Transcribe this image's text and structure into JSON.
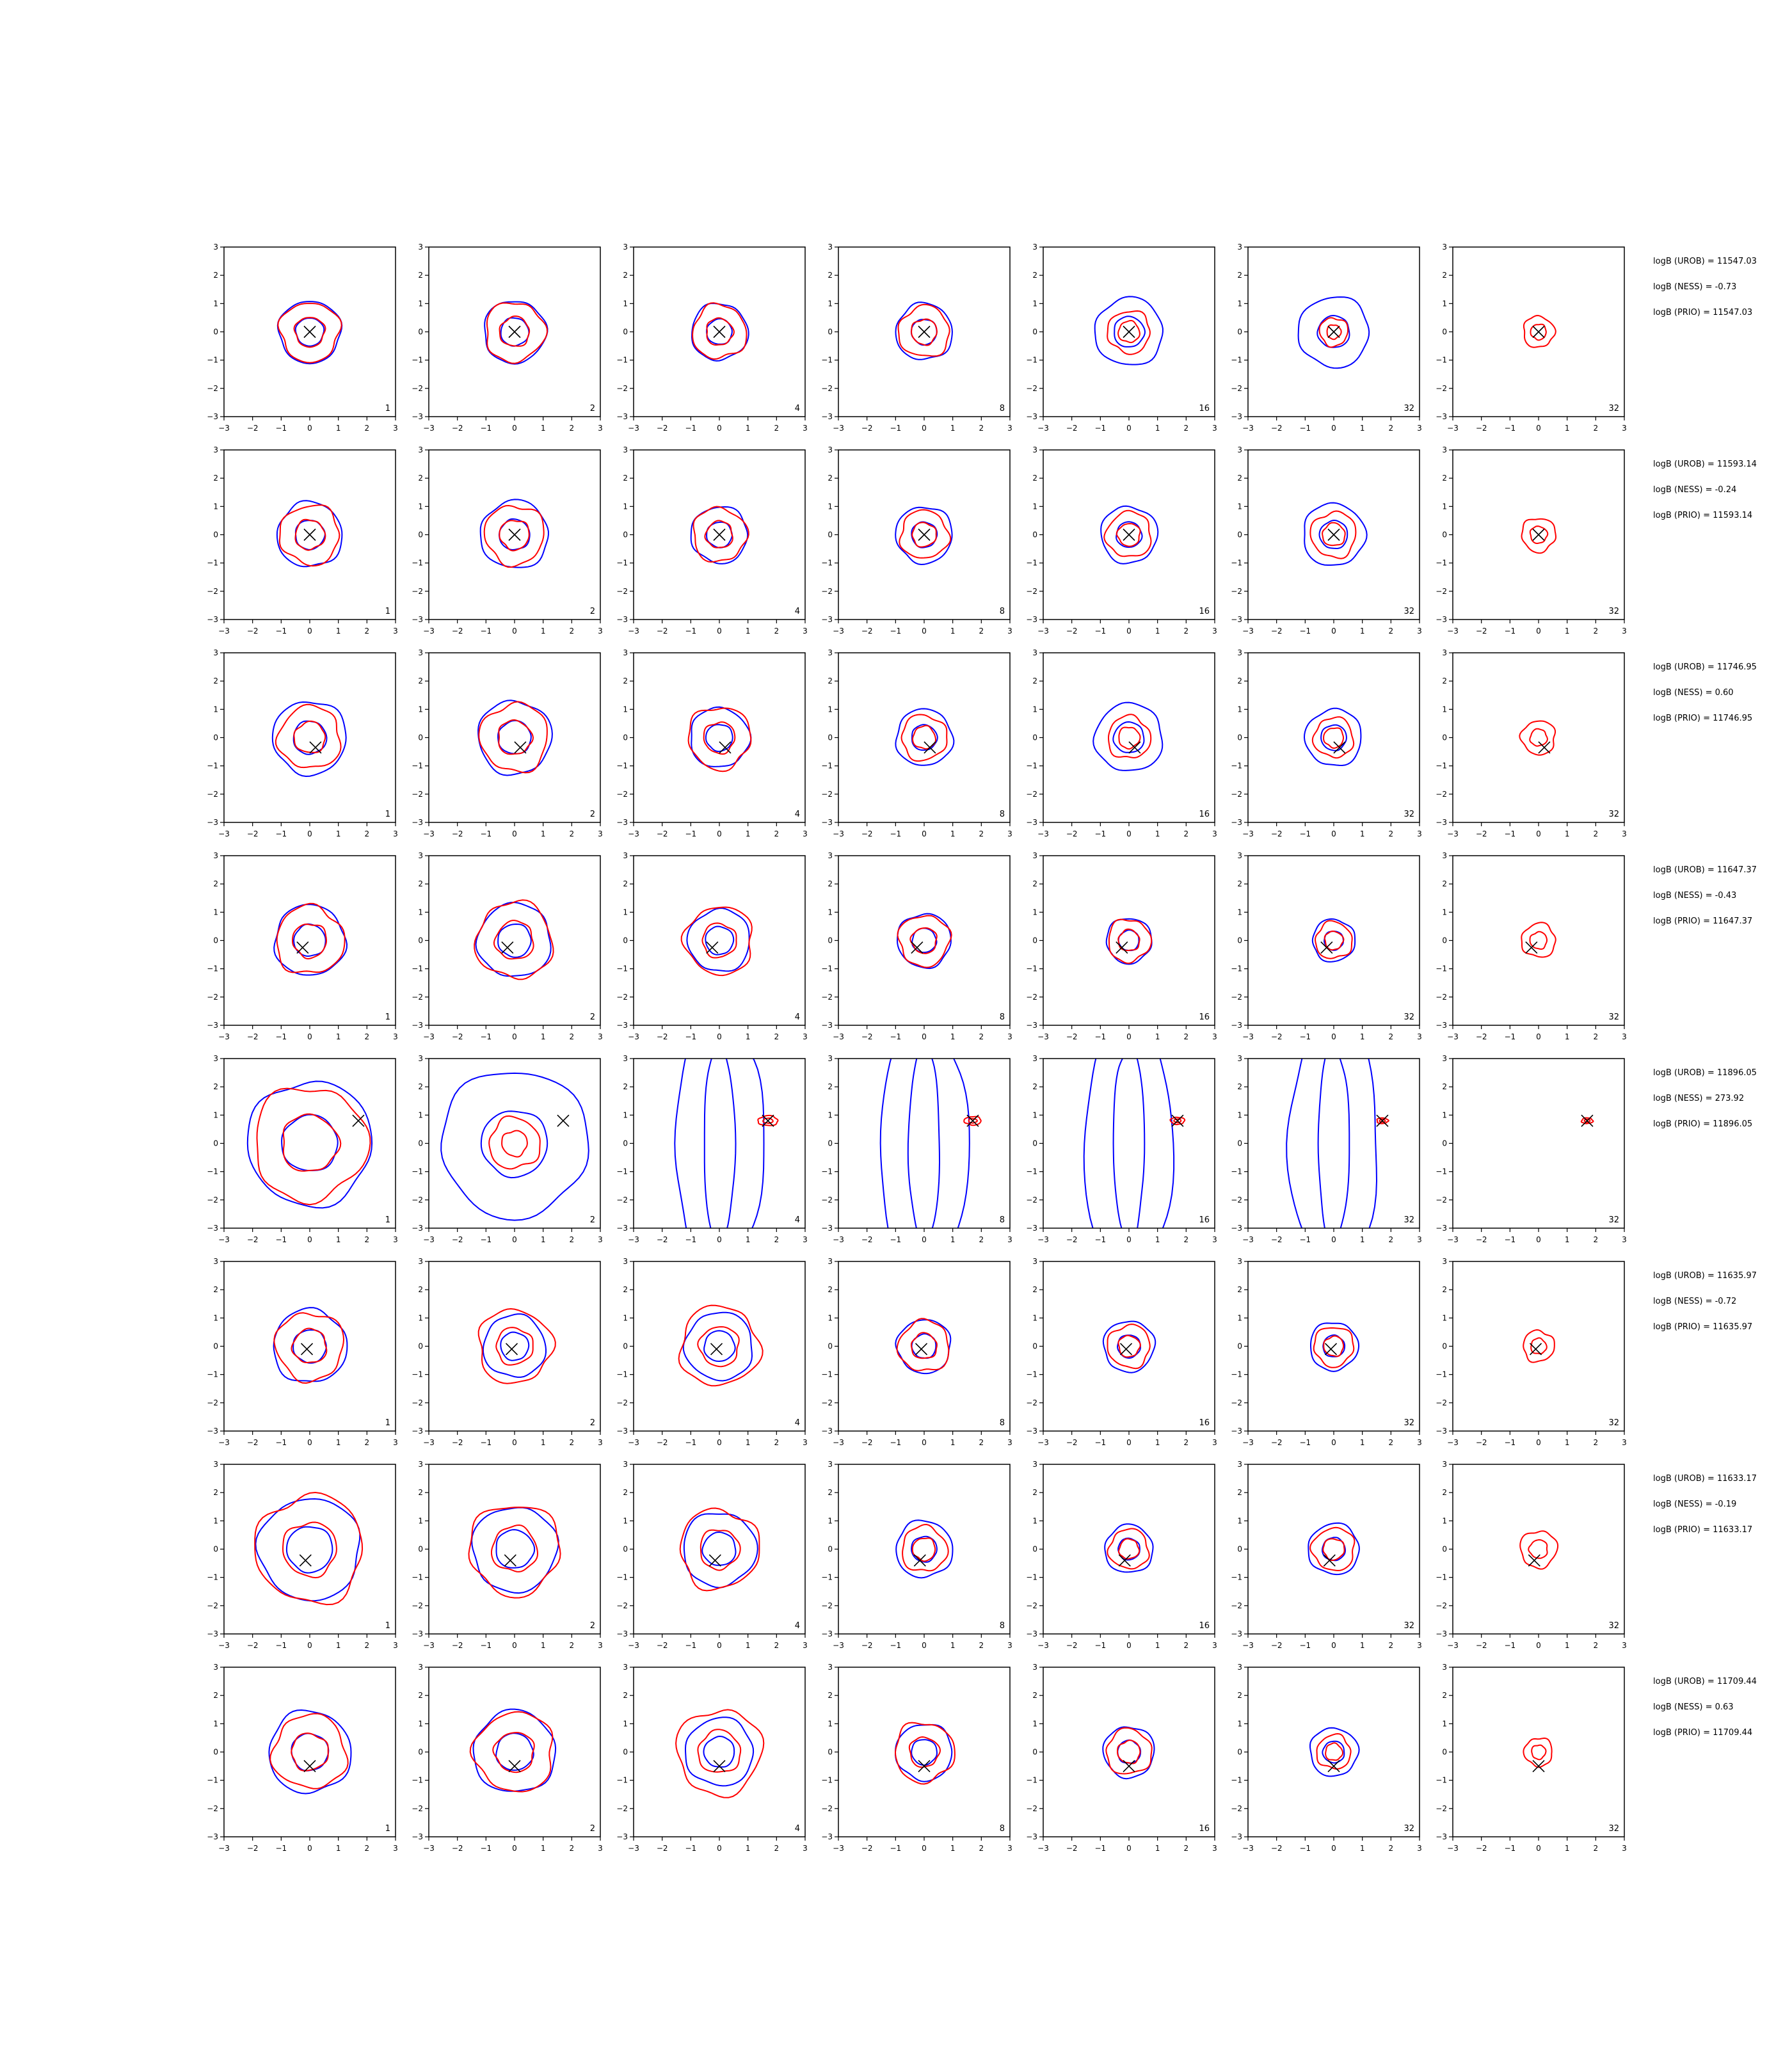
{
  "colors": {
    "contour_a": "#0000ff",
    "contour_b": "#ff0000",
    "marker": "#000000",
    "axes": "#000000"
  },
  "axis": {
    "xlim": [
      -3,
      3
    ],
    "ylim": [
      -3,
      3
    ],
    "xticks": [
      "−3",
      "−2",
      "−1",
      "0",
      "1",
      "2",
      "3"
    ],
    "yticks": [
      "3",
      "2",
      "1",
      "0",
      "−1",
      "−2",
      "−3"
    ]
  },
  "chart_data": {
    "type": "contour-grid",
    "rows": 8,
    "cols": 7,
    "grid": false,
    "panel_labels": [
      "1",
      "2",
      "4",
      "8",
      "16",
      "32",
      "32"
    ],
    "rows_data": [
      {
        "marker": [
          0.0,
          0.0
        ],
        "stats": [
          "logB (UROB) = 11547.03",
          "logB (NESS) = -0.73",
          "logB (PRIO) = 11547.03"
        ],
        "blue": [
          1.1,
          1.1,
          1.0,
          1.0,
          1.2,
          1.25,
          0
        ],
        "red": [
          1.05,
          1.05,
          0.95,
          0.9,
          0.75,
          0.5,
          0.55
        ]
      },
      {
        "marker": [
          0.0,
          0.0
        ],
        "stats": [
          "logB (UROB) = 11593.14",
          "logB (NESS) = -0.24",
          "logB (PRIO) = 11593.14"
        ],
        "blue": [
          1.15,
          1.2,
          1.0,
          1.0,
          1.0,
          1.1,
          0
        ],
        "red": [
          1.05,
          1.05,
          0.95,
          0.85,
          0.8,
          0.8,
          0.6
        ]
      },
      {
        "marker": [
          0.2,
          -0.35
        ],
        "stats": [
          "logB (UROB) = 11746.95",
          "logB (NESS) = 0.60",
          "logB (PRIO) = 11746.95"
        ],
        "blue": [
          1.3,
          1.3,
          1.05,
          1.0,
          1.2,
          1.0,
          0
        ],
        "red": [
          1.1,
          1.2,
          1.1,
          0.8,
          0.75,
          0.7,
          0.6
        ]
      },
      {
        "marker": [
          -0.25,
          -0.25
        ],
        "stats": [
          "logB (UROB) = 11647.37",
          "logB (NESS) = -0.43",
          "logB (PRIO) = 11647.37"
        ],
        "blue": [
          1.25,
          1.3,
          1.1,
          0.95,
          0.8,
          0.75,
          0
        ],
        "red": [
          1.2,
          1.35,
          1.2,
          0.9,
          0.75,
          0.65,
          0.6
        ]
      },
      {
        "marker": [
          1.7,
          0.8
        ],
        "stats": [
          "logB (UROB) = 11896.05",
          "logB (NESS) = 273.92",
          "logB (PRIO) = 11896.05"
        ],
        "blue": [
          2.2,
          2.6,
          3.5,
          3.5,
          3.5,
          3.5,
          0
        ],
        "red": [
          2.0,
          0.9,
          0.35,
          0.3,
          0.25,
          0.2,
          0.2
        ]
      },
      {
        "marker": [
          -0.1,
          -0.1
        ],
        "stats": [
          "logB (UROB) = 11635.97",
          "logB (NESS) = -0.72",
          "logB (PRIO) = 11635.97"
        ],
        "blue": [
          1.3,
          1.1,
          1.2,
          0.95,
          0.9,
          0.85,
          0
        ],
        "red": [
          1.2,
          1.3,
          1.4,
          0.9,
          0.75,
          0.7,
          0.55
        ]
      },
      {
        "marker": [
          -0.15,
          -0.4
        ],
        "stats": [
          "logB (UROB) = 11633.17",
          "logB (NESS) = -0.19",
          "logB (PRIO) = 11633.17"
        ],
        "blue": [
          1.8,
          1.5,
          1.3,
          1.0,
          0.85,
          0.9,
          0
        ],
        "red": [
          1.9,
          1.6,
          1.4,
          0.8,
          0.7,
          0.75,
          0.65
        ]
      },
      {
        "marker": [
          0.0,
          -0.5
        ],
        "stats": [
          "logB (UROB) = 11709.44",
          "logB (NESS) = 0.63",
          "logB (PRIO) = 11709.44"
        ],
        "blue": [
          1.45,
          1.45,
          1.2,
          1.0,
          0.9,
          0.85,
          0
        ],
        "red": [
          1.3,
          1.4,
          1.5,
          1.05,
          0.8,
          0.6,
          0.5
        ]
      }
    ]
  }
}
